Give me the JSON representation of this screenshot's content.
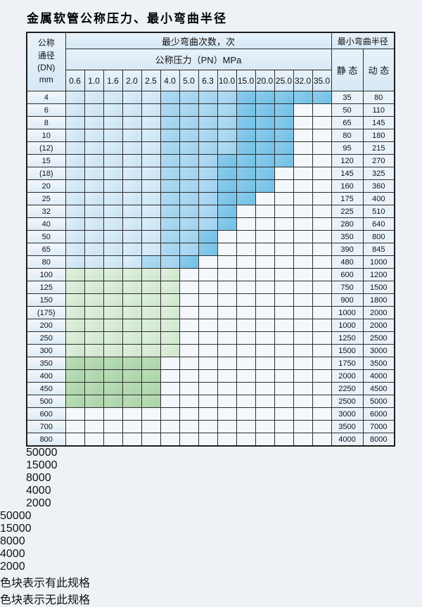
{
  "title": "金属软管公称压力、最小弯曲半径",
  "table": {
    "header": {
      "dn": "公称\n通径\n(DN)\nmm",
      "cycles": "最少弯曲次数，次",
      "radius": "最小弯曲半径",
      "pressure": "公称压力（PN）MPa",
      "static_label": "静 态",
      "dynamic_label": "动 态",
      "pressures": [
        "0.6",
        "1.0",
        "1.6",
        "2.0",
        "2.5",
        "4.0",
        "5.0",
        "6.3",
        "10.0",
        "15.0",
        "20.0",
        "25.0",
        "32.0",
        "35.0"
      ]
    },
    "rows": [
      {
        "dn": "4",
        "zones": [
          [
            "b1",
            5
          ],
          [
            "b2",
            4
          ],
          [
            "b3",
            5
          ]
        ],
        "static": "35",
        "dynamic": "80"
      },
      {
        "dn": "6",
        "zones": [
          [
            "b1",
            5
          ],
          [
            "b2",
            4
          ],
          [
            "b3",
            3
          ],
          [
            "x",
            2
          ]
        ],
        "static": "50",
        "dynamic": "110"
      },
      {
        "dn": "8",
        "zones": [
          [
            "b1",
            5
          ],
          [
            "b2",
            4
          ],
          [
            "b3",
            3
          ],
          [
            "x",
            2
          ]
        ],
        "static": "65",
        "dynamic": "145"
      },
      {
        "dn": "10",
        "zones": [
          [
            "b1",
            5
          ],
          [
            "b2",
            4
          ],
          [
            "b3",
            3
          ],
          [
            "x",
            2
          ]
        ],
        "static": "80",
        "dynamic": "180"
      },
      {
        "dn": "(12)",
        "zones": [
          [
            "b1",
            5
          ],
          [
            "b2",
            4
          ],
          [
            "b3",
            3
          ],
          [
            "x",
            2
          ]
        ],
        "static": "95",
        "dynamic": "215"
      },
      {
        "dn": "15",
        "zones": [
          [
            "b1",
            5
          ],
          [
            "b2",
            3
          ],
          [
            "b3",
            4
          ],
          [
            "x",
            2
          ]
        ],
        "static": "120",
        "dynamic": "270"
      },
      {
        "dn": "(18)",
        "zones": [
          [
            "b1",
            5
          ],
          [
            "b2",
            3
          ],
          [
            "b3",
            3
          ],
          [
            "x",
            3
          ]
        ],
        "static": "145",
        "dynamic": "325"
      },
      {
        "dn": "20",
        "zones": [
          [
            "b1",
            5
          ],
          [
            "b2",
            3
          ],
          [
            "b3",
            3
          ],
          [
            "x",
            3
          ]
        ],
        "static": "160",
        "dynamic": "360"
      },
      {
        "dn": "25",
        "zones": [
          [
            "b1",
            5
          ],
          [
            "b2",
            3
          ],
          [
            "b3",
            2
          ],
          [
            "x",
            4
          ]
        ],
        "static": "175",
        "dynamic": "400"
      },
      {
        "dn": "32",
        "zones": [
          [
            "b1",
            5
          ],
          [
            "b2",
            3
          ],
          [
            "b3",
            1
          ],
          [
            "x",
            5
          ]
        ],
        "static": "225",
        "dynamic": "510"
      },
      {
        "dn": "40",
        "zones": [
          [
            "b1",
            5
          ],
          [
            "b2",
            3
          ],
          [
            "b3",
            1
          ],
          [
            "x",
            5
          ]
        ],
        "static": "280",
        "dynamic": "640"
      },
      {
        "dn": "50",
        "zones": [
          [
            "b1",
            5
          ],
          [
            "b2",
            2
          ],
          [
            "b3",
            1
          ],
          [
            "x",
            6
          ]
        ],
        "static": "350",
        "dynamic": "800"
      },
      {
        "dn": "65",
        "zones": [
          [
            "b1",
            5
          ],
          [
            "b2",
            2
          ],
          [
            "b3",
            1
          ],
          [
            "x",
            6
          ]
        ],
        "static": "390",
        "dynamic": "845"
      },
      {
        "dn": "80",
        "zones": [
          [
            "b1",
            4
          ],
          [
            "b2",
            2
          ],
          [
            "b3",
            1
          ],
          [
            "x",
            7
          ]
        ],
        "static": "480",
        "dynamic": "1000"
      },
      {
        "dn": "100",
        "zones": [
          [
            "g1",
            6
          ],
          [
            "x",
            8
          ]
        ],
        "static": "600",
        "dynamic": "1200"
      },
      {
        "dn": "125",
        "zones": [
          [
            "g1",
            6
          ],
          [
            "x",
            8
          ]
        ],
        "static": "750",
        "dynamic": "1500"
      },
      {
        "dn": "150",
        "zones": [
          [
            "g1",
            6
          ],
          [
            "x",
            8
          ]
        ],
        "static": "900",
        "dynamic": "1800"
      },
      {
        "dn": "(175)",
        "zones": [
          [
            "g1",
            6
          ],
          [
            "x",
            8
          ]
        ],
        "static": "1000",
        "dynamic": "2000"
      },
      {
        "dn": "200",
        "zones": [
          [
            "g1",
            6
          ],
          [
            "x",
            8
          ]
        ],
        "static": "1000",
        "dynamic": "2000"
      },
      {
        "dn": "250",
        "zones": [
          [
            "g1",
            6
          ],
          [
            "x",
            8
          ]
        ],
        "static": "1250",
        "dynamic": "2500"
      },
      {
        "dn": "300",
        "zones": [
          [
            "g1",
            6
          ],
          [
            "x",
            8
          ]
        ],
        "static": "1500",
        "dynamic": "3000"
      },
      {
        "dn": "350",
        "zones": [
          [
            "g2",
            5
          ],
          [
            "x",
            9
          ]
        ],
        "static": "1750",
        "dynamic": "3500"
      },
      {
        "dn": "400",
        "zones": [
          [
            "g2",
            5
          ],
          [
            "x",
            9
          ]
        ],
        "static": "2000",
        "dynamic": "4000"
      },
      {
        "dn": "450",
        "zones": [
          [
            "g2",
            5
          ],
          [
            "x",
            9
          ]
        ],
        "static": "2250",
        "dynamic": "4500"
      },
      {
        "dn": "500",
        "zones": [
          [
            "g2",
            5
          ],
          [
            "x",
            9
          ]
        ],
        "static": "2500",
        "dynamic": "5000"
      },
      {
        "dn": "600",
        "zones": [
          [
            "g3",
            4
          ],
          [
            "x",
            10
          ]
        ],
        "static": "3000",
        "dynamic": "6000"
      },
      {
        "dn": "700",
        "zones": [
          [
            "g3",
            3
          ],
          [
            "x",
            11
          ]
        ],
        "static": "3500",
        "dynamic": "7000"
      },
      {
        "dn": "800",
        "zones": [
          [
            "g3",
            3
          ],
          [
            "x",
            11
          ]
        ],
        "static": "4000",
        "dynamic": "8000"
      }
    ]
  },
  "overlays": {
    "l50000": "50000",
    "l15000": "15000",
    "l8000": "8000",
    "l4000": "4000",
    "l2000": "2000"
  },
  "legend": {
    "swatches": [
      {
        "value": "50000",
        "color": "#cfe6f7"
      },
      {
        "value": "15000",
        "color": "#a0d3ef"
      },
      {
        "value": "8000",
        "color": "#74c2e8"
      },
      {
        "value": "4000",
        "color": "#d5ead3"
      },
      {
        "value": "2000",
        "color": "#8cc691"
      }
    ],
    "has_spec_text": "色块表示有此规格",
    "no_spec_text": "色块表示无此规格"
  },
  "colors": {
    "cycles_50000": "#cfe6f7",
    "cycles_15000": "#a0d3ef",
    "cycles_8000": "#74c2e8",
    "cycles_4000": "#d5ead3",
    "cycles_2000": "#8cc691",
    "no_spec_hatch_bg": "#edf3fb",
    "grid_line": "#2e2e2e",
    "header_bg": "#d7e8f5"
  }
}
